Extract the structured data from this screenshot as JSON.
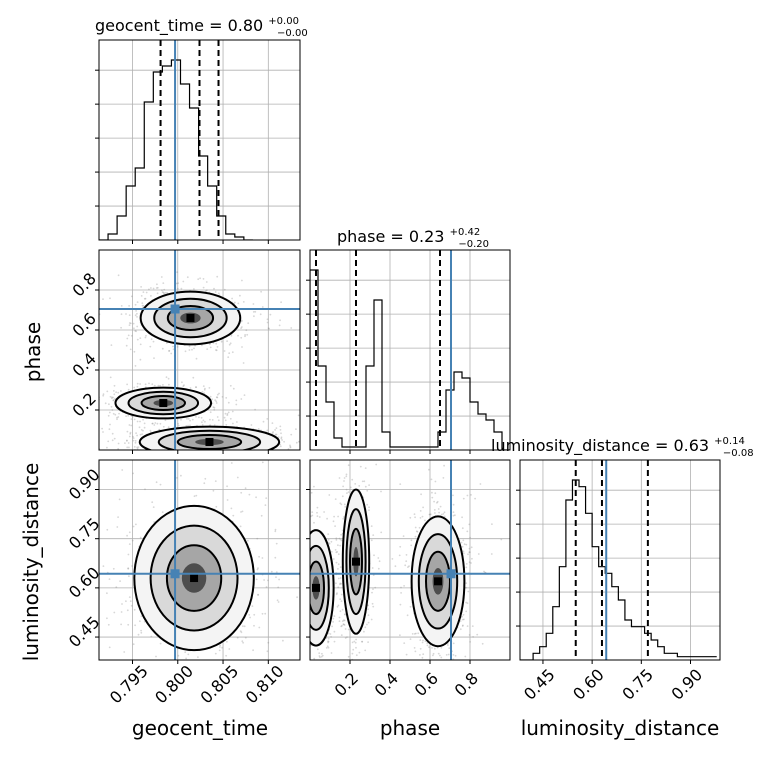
{
  "chart_data": {
    "type": "corner",
    "parameters": [
      "geocent_time",
      "phase",
      "luminosity_distance"
    ],
    "axis_labels": {
      "geocent_time": "geocent_time",
      "phase": "phase",
      "luminosity_distance": "luminosity_distance"
    },
    "titles": [
      {
        "param": "geocent_time",
        "text": "geocent_time = 0.80",
        "sup": "+0.00",
        "sub": "−0.00"
      },
      {
        "param": "phase",
        "text": "phase = 0.23",
        "sup": "+0.42",
        "sub": "−0.20"
      },
      {
        "param": "luminosity_distance",
        "text": "luminosity_distance = 0.63",
        "sup": "+0.14",
        "sub": "−0.08"
      }
    ],
    "ranges": {
      "geocent_time": [
        0.7913,
        0.8135
      ],
      "phase": [
        0.0,
        1.0
      ],
      "luminosity_distance": [
        0.38,
        0.99
      ]
    },
    "ticks": {
      "geocent_time": [
        {
          "v": 0.795,
          "label": "0.795"
        },
        {
          "v": 0.8,
          "label": "0.800"
        },
        {
          "v": 0.805,
          "label": "0.805"
        },
        {
          "v": 0.81,
          "label": "0.810"
        }
      ],
      "phase_y": [
        {
          "v": 0.2,
          "label": "0.2"
        },
        {
          "v": 0.4,
          "label": "0.4"
        },
        {
          "v": 0.6,
          "label": "0.6"
        },
        {
          "v": 0.8,
          "label": "0.8"
        }
      ],
      "phase_x": [
        {
          "v": 0.2,
          "label": "0.2"
        },
        {
          "v": 0.4,
          "label": "0.4"
        },
        {
          "v": 0.6,
          "label": "0.6"
        },
        {
          "v": 0.8,
          "label": "0.8"
        }
      ],
      "luminosity_distance": [
        {
          "v": 0.45,
          "label": "0.45"
        },
        {
          "v": 0.6,
          "label": "0.60"
        },
        {
          "v": 0.75,
          "label": "0.75"
        },
        {
          "v": 0.9,
          "label": "0.90"
        }
      ]
    },
    "truths": {
      "geocent_time": 0.7997,
      "phase": 0.705,
      "luminosity_distance": 0.643
    },
    "quantiles": {
      "geocent_time": [
        0.7981,
        0.8024,
        0.8045
      ],
      "phase": [
        0.03,
        0.23,
        0.65
      ],
      "luminosity_distance": [
        0.55,
        0.63,
        0.77
      ]
    },
    "histograms": {
      "geocent_time": {
        "edges_start": 0.7913,
        "bin_width": 0.001,
        "values": [
          0,
          1,
          4,
          9,
          12,
          23,
          28,
          29,
          30,
          26,
          22,
          14,
          9,
          4,
          1,
          0.5,
          0
        ]
      },
      "phase": {
        "edges_start": 0.0,
        "bin_width": 0.04,
        "values": [
          30,
          14,
          8,
          2,
          0.5,
          0.5,
          0.5,
          14,
          25,
          3,
          0.5,
          0.5,
          0.5,
          0.5,
          0.5,
          0.5,
          3,
          10,
          13,
          12,
          8,
          6,
          5,
          3,
          0
        ]
      },
      "luminosity_distance": {
        "edges_start": 0.38,
        "bin_width": 0.02,
        "values": [
          0,
          0,
          1,
          2,
          4,
          8,
          14,
          24,
          27,
          26,
          22,
          17,
          14,
          13,
          11,
          9,
          6,
          5,
          5,
          4,
          3,
          2,
          1,
          1,
          0.5,
          0.5,
          0.5,
          0.5,
          0.5,
          0.5
        ]
      }
    },
    "blobs_2d": [
      {
        "x": "geocent_time",
        "y": "phase",
        "cx": 0.8014,
        "cy": 0.66,
        "sx": 0.0025,
        "sy": 0.06,
        "w": 1.0
      },
      {
        "x": "geocent_time",
        "y": "phase",
        "cx": 0.7984,
        "cy": 0.235,
        "sx": 0.0024,
        "sy": 0.035,
        "w": 0.8
      },
      {
        "x": "geocent_time",
        "y": "phase",
        "cx": 0.8035,
        "cy": 0.04,
        "sx": 0.0035,
        "sy": 0.035,
        "w": 1.1
      },
      {
        "x": "geocent_time",
        "y": "luminosity_distance",
        "cx": 0.8018,
        "cy": 0.63,
        "sx": 0.003,
        "sy": 0.1,
        "w": 1.0
      },
      {
        "x": "phase",
        "y": "luminosity_distance",
        "cx": 0.03,
        "cy": 0.6,
        "sx": 0.04,
        "sy": 0.08,
        "w": 0.7
      },
      {
        "x": "phase",
        "y": "luminosity_distance",
        "cx": 0.23,
        "cy": 0.68,
        "sx": 0.03,
        "sy": 0.1,
        "w": 0.8
      },
      {
        "x": "phase",
        "y": "luminosity_distance",
        "cx": 0.64,
        "cy": 0.62,
        "sx": 0.06,
        "sy": 0.09,
        "w": 1.0
      }
    ],
    "colors": {
      "truth": "#4682b4",
      "contour": "#000000",
      "grid": "#b0b0b0",
      "hist": "#000000"
    },
    "grid": true
  }
}
